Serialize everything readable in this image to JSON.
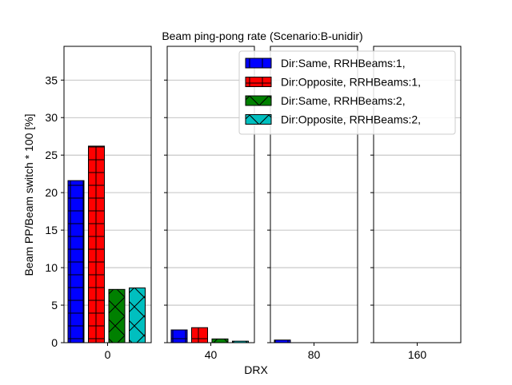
{
  "chart_data": {
    "type": "bar",
    "title": "Beam ping-pong rate (Scenario:B-unidir)",
    "xlabel": "DRX",
    "ylabel": "Beam PP/Beam switch * 100 [%]",
    "ylim": [
      0,
      39.5
    ],
    "yticks": [
      0,
      5,
      10,
      15,
      20,
      25,
      30,
      35
    ],
    "grid": "y",
    "legend_placement": "top-right",
    "categories": [
      "0",
      "40",
      "80",
      "160"
    ],
    "series": [
      {
        "name": "Dir:Same, RRHBeams:1,",
        "color": "#0000ff",
        "hatch": "plus",
        "values": [
          21.6,
          1.7,
          0.35,
          0.0
        ]
      },
      {
        "name": "Dir:Opposite, RRHBeams:1,",
        "color": "#ff0000",
        "hatch": "plus",
        "values": [
          26.2,
          2.0,
          0.0,
          0.0
        ]
      },
      {
        "name": "Dir:Same, RRHBeams:2,",
        "color": "#008000",
        "hatch": "x",
        "values": [
          7.1,
          0.5,
          0.0,
          0.0
        ]
      },
      {
        "name": "Dir:Opposite, RRHBeams:2,",
        "color": "#00bfbf",
        "hatch": "x",
        "values": [
          7.3,
          0.2,
          0.0,
          0.0
        ]
      }
    ]
  }
}
